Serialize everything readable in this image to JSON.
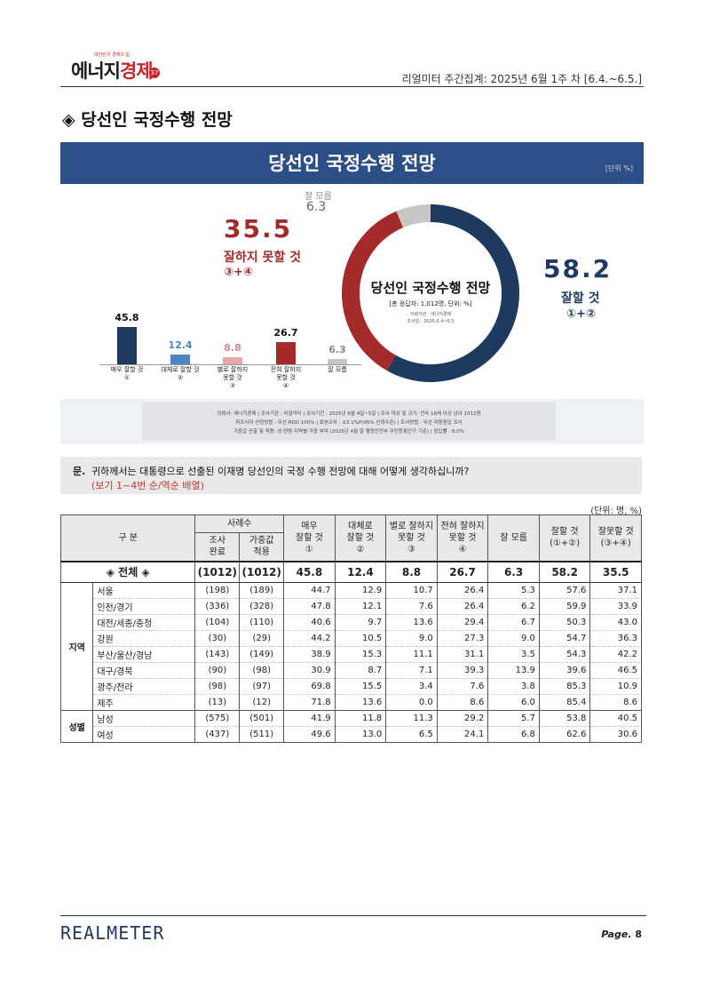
{
  "header": {
    "logo_main": "에너지",
    "logo_accent": "경제",
    "logo_tagline": "대한민국 경제의 힘",
    "logo_badge": "37",
    "right_text": "리얼미터 주간집계: 2025년 6월 1주 차 [6.4.~6.5.]"
  },
  "section_title": "◈ 당선인 국정수행 전망",
  "infographic": {
    "title": "당선인 국정수행 전망",
    "unit": "[단위 %]",
    "negative": {
      "value": "35.5",
      "label": "잘하지 못할 것",
      "sub": "③+④"
    },
    "dont_know": {
      "label": "잘 모름",
      "value": "6.3"
    },
    "positive": {
      "value": "58.2",
      "label": "잘할 것",
      "sub": "①+②"
    },
    "donut_title": "당선인 국정수행 전망",
    "donut_sub": "[총 응답자: 1,012명, 단위: %]",
    "donut_note1": "의뢰기관 : 에너지경제",
    "donut_note2": "조사일 : 2025.6.4~6.5",
    "note_lines": [
      "의뢰사: 에너지경제 | 조사기관 : 리얼미터 | 조사기간 : 2025년 6월 4일~5일 | 조사 대상 및 크기: 전국 18세 이상 남녀 1012명",
      "피조사자 선정방법 : 무선 RDD 100% | 표본오차 : ±3.1%P(95% 신뢰수준) | 조사방법 : 무선 자동응답 조사",
      "가중값 산출 및 적용: 성·연령·지역별 가중 부여 (2025년 4월 말 행정안전부 주민등록인구 기준) | 응답률 : 8.0%"
    ],
    "colors": {
      "navy": "#1f3a5f",
      "blue": "#4a86c8",
      "pink": "#e8a6a6",
      "red": "#a52a2a",
      "gray": "#c6c6c6"
    }
  },
  "chart_data": [
    {
      "type": "bar",
      "categories": [
        "매우 잘할 것 ①",
        "대체로 잘할 것 ②",
        "별로 잘하지 못할 것 ③",
        "전혀 잘하지 못할 것 ④",
        "잘 모름"
      ],
      "values": [
        45.8,
        12.4,
        8.8,
        26.7,
        6.3
      ],
      "labels": [
        [
          "매우 잘할 것",
          "①"
        ],
        [
          "대체로 잘할 것",
          "②"
        ],
        [
          "별로 잘하지",
          "못할 것",
          "③"
        ],
        [
          "전혀 잘하지",
          "못할 것",
          "④"
        ],
        [
          "잘 모름"
        ]
      ],
      "colors": [
        "#1f3a5f",
        "#4a86c8",
        "#e8a6a6",
        "#a52a2a",
        "#c6c6c6"
      ]
    },
    {
      "type": "pie",
      "categories": [
        "잘할 것",
        "잘하지 못할 것",
        "잘 모름"
      ],
      "values": [
        58.2,
        35.5,
        6.3
      ],
      "colors": [
        "#1f3a5f",
        "#a52a2a",
        "#c6c6c6"
      ]
    }
  ],
  "question": {
    "mark": "문.",
    "text": "귀하께서는 대통령으로 선출된 이재명 당선인의 국정 수행 전망에 대해 어떻게 생각하십니까?",
    "sub": "(보기 1~4번 순/역순 배열)"
  },
  "table": {
    "unit": "(단위: 명, %)",
    "headers": {
      "category": "구 분",
      "sample": "사례수",
      "sample_done": [
        "조사",
        "완료"
      ],
      "sample_weighted": [
        "가중값",
        "적용"
      ],
      "cols": [
        [
          "매우",
          "잘할 것",
          "①"
        ],
        [
          "대체로",
          "잘할 것",
          "②"
        ],
        [
          "별로 잘하지",
          "못할 것",
          "③"
        ],
        [
          "전혀 잘하지",
          "못할 것",
          "④"
        ],
        [
          "잘 모름"
        ],
        [
          "잘할 것",
          "(①+②)"
        ],
        [
          "잘못할 것",
          "(③+④)"
        ]
      ]
    },
    "total": {
      "label": "◈ 전체 ◈",
      "n": "(1012)",
      "w": "(1012)",
      "values": [
        "45.8",
        "12.4",
        "8.8",
        "26.7",
        "6.3",
        "58.2",
        "35.5"
      ]
    },
    "groups": [
      {
        "name": "지역",
        "rows": [
          {
            "label": "서울",
            "n": "(198)",
            "w": "(189)",
            "values": [
              "44.7",
              "12.9",
              "10.7",
              "26.4",
              "5.3",
              "57.6",
              "37.1"
            ]
          },
          {
            "label": "인천/경기",
            "n": "(336)",
            "w": "(328)",
            "values": [
              "47.8",
              "12.1",
              "7.6",
              "26.4",
              "6.2",
              "59.9",
              "33.9"
            ]
          },
          {
            "label": "대전/세종/충청",
            "n": "(104)",
            "w": "(110)",
            "values": [
              "40.6",
              "9.7",
              "13.6",
              "29.4",
              "6.7",
              "50.3",
              "43.0"
            ]
          },
          {
            "label": "강원",
            "n": "(30)",
            "w": "(29)",
            "values": [
              "44.2",
              "10.5",
              "9.0",
              "27.3",
              "9.0",
              "54.7",
              "36.3"
            ]
          },
          {
            "label": "부산/울산/경남",
            "n": "(143)",
            "w": "(149)",
            "values": [
              "38.9",
              "15.3",
              "11.1",
              "31.1",
              "3.5",
              "54.3",
              "42.2"
            ]
          },
          {
            "label": "대구/경북",
            "n": "(90)",
            "w": "(98)",
            "values": [
              "30.9",
              "8.7",
              "7.1",
              "39.3",
              "13.9",
              "39.6",
              "46.5"
            ]
          },
          {
            "label": "광주/전라",
            "n": "(98)",
            "w": "(97)",
            "values": [
              "69.8",
              "15.5",
              "3.4",
              "7.6",
              "3.8",
              "85.3",
              "10.9"
            ]
          },
          {
            "label": "제주",
            "n": "(13)",
            "w": "(12)",
            "values": [
              "71.8",
              "13.6",
              "0.0",
              "8.6",
              "6.0",
              "85.4",
              "8.6"
            ]
          }
        ]
      },
      {
        "name": "성별",
        "rows": [
          {
            "label": "남성",
            "n": "(575)",
            "w": "(501)",
            "values": [
              "41.9",
              "11.8",
              "11.3",
              "29.2",
              "5.7",
              "53.8",
              "40.5"
            ]
          },
          {
            "label": "여성",
            "n": "(437)",
            "w": "(511)",
            "values": [
              "49.6",
              "13.0",
              "6.5",
              "24.1",
              "6.8",
              "62.6",
              "30.6"
            ]
          }
        ]
      }
    ]
  },
  "footer": {
    "brand": "REALMETER",
    "page_prefix": "Page.",
    "page_number": "8"
  }
}
